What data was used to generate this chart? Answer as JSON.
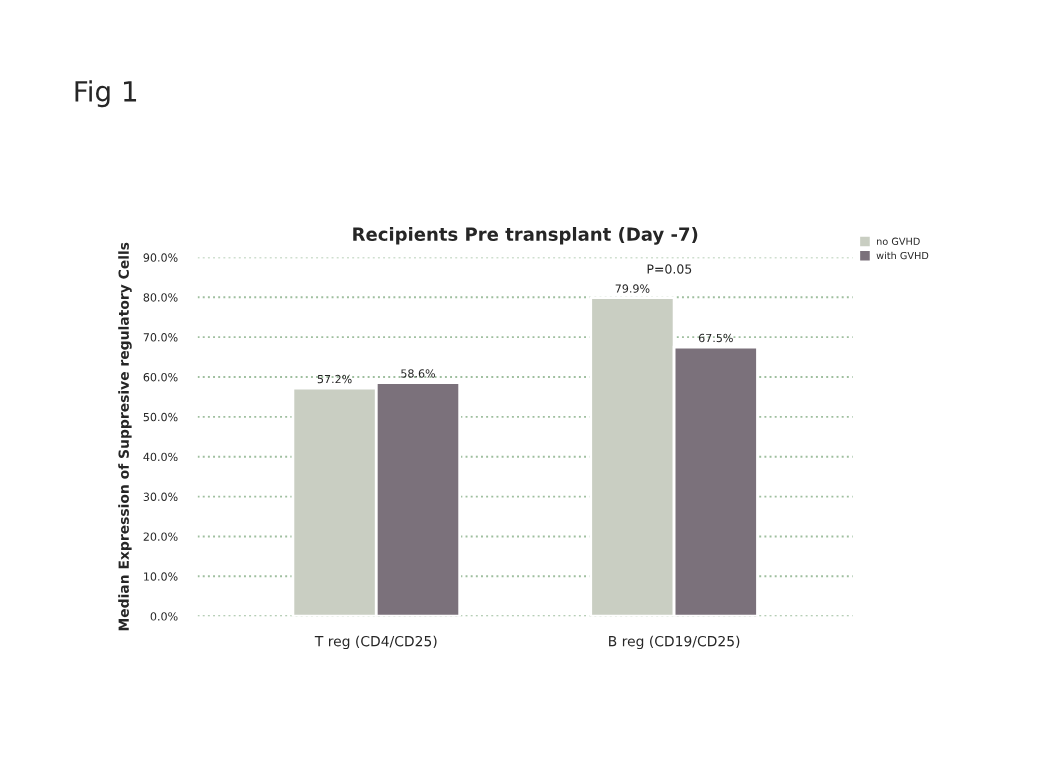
{
  "chart_data": {
    "type": "bar",
    "title": "Recipients Pre transplant (Day -7)",
    "ylabel": "Median Expression of Suppresive regulatory Cells",
    "categories": [
      "T reg (CD4/CD25)",
      "B reg (CD19/CD25)"
    ],
    "series": [
      {
        "name": "no GVHD",
        "color": "#c9cec2",
        "values": [
          57.2,
          79.9
        ],
        "value_labels": [
          "57.2%",
          "79.9%"
        ]
      },
      {
        "name": "with GVHD",
        "color": "#7b717b",
        "values": [
          58.6,
          67.5
        ],
        "value_labels": [
          "58.6%",
          "67.5%"
        ]
      }
    ],
    "ylim": [
      0,
      90
    ],
    "yticks": [
      {
        "value": 0,
        "label": "0.0%"
      },
      {
        "value": 10,
        "label": "10.0%"
      },
      {
        "value": 20,
        "label": "20.0%"
      },
      {
        "value": 30,
        "label": "30.0%"
      },
      {
        "value": 40,
        "label": "40.0%"
      },
      {
        "value": 50,
        "label": "50.0%"
      },
      {
        "value": 60,
        "label": "60.0%"
      },
      {
        "value": 70,
        "label": "70.0%"
      },
      {
        "value": 80,
        "label": "80.0%"
      },
      {
        "value": 90,
        "label": "90.0%"
      }
    ],
    "grid": "y",
    "legend": "top right",
    "annotations": [
      "Fig 1",
      "P=0.05"
    ]
  }
}
